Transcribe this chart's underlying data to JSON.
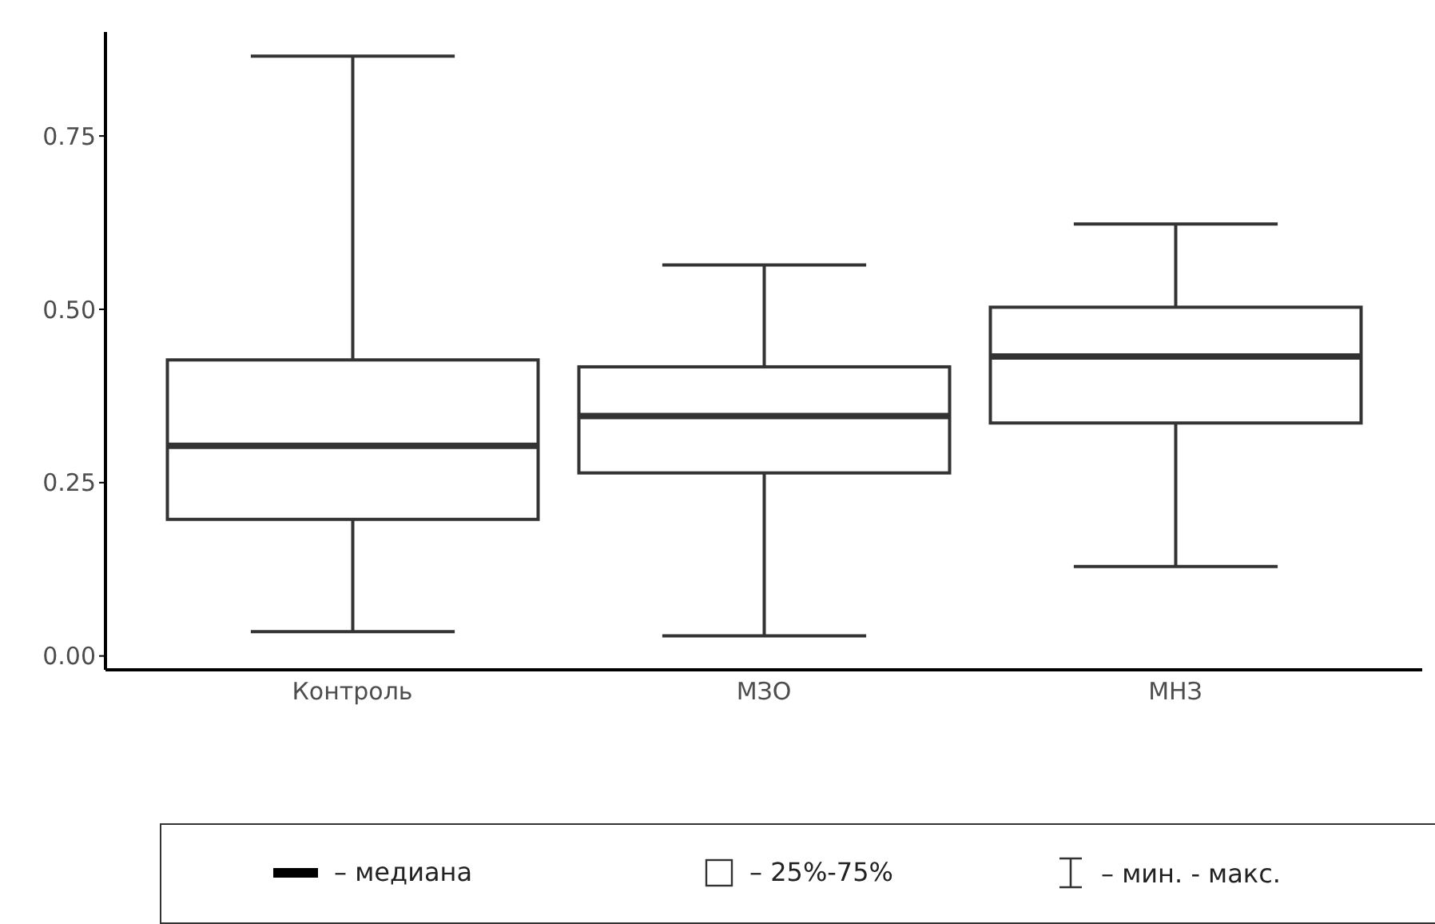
{
  "chart_data": {
    "type": "box",
    "categories": [
      "Контроль",
      "МЗО",
      "МНЗ"
    ],
    "boxes": [
      {
        "low": 0.035,
        "q1": 0.197,
        "median": 0.303,
        "q3": 0.427,
        "high": 0.865
      },
      {
        "low": 0.029,
        "q1": 0.264,
        "median": 0.346,
        "q3": 0.417,
        "high": 0.564
      },
      {
        "low": 0.129,
        "q1": 0.336,
        "median": 0.432,
        "q3": 0.503,
        "high": 0.623
      }
    ],
    "ylim": [
      -0.02,
      0.9
    ],
    "yticks": [
      {
        "value": 0,
        "label": "0.00"
      },
      {
        "value": 0.25,
        "label": "0.25"
      },
      {
        "value": 0.5,
        "label": "0.50"
      },
      {
        "value": 0.75,
        "label": "0.75"
      }
    ],
    "annotations": [
      "– медиана",
      "– 25%-75%",
      "– мин. - макс."
    ]
  }
}
